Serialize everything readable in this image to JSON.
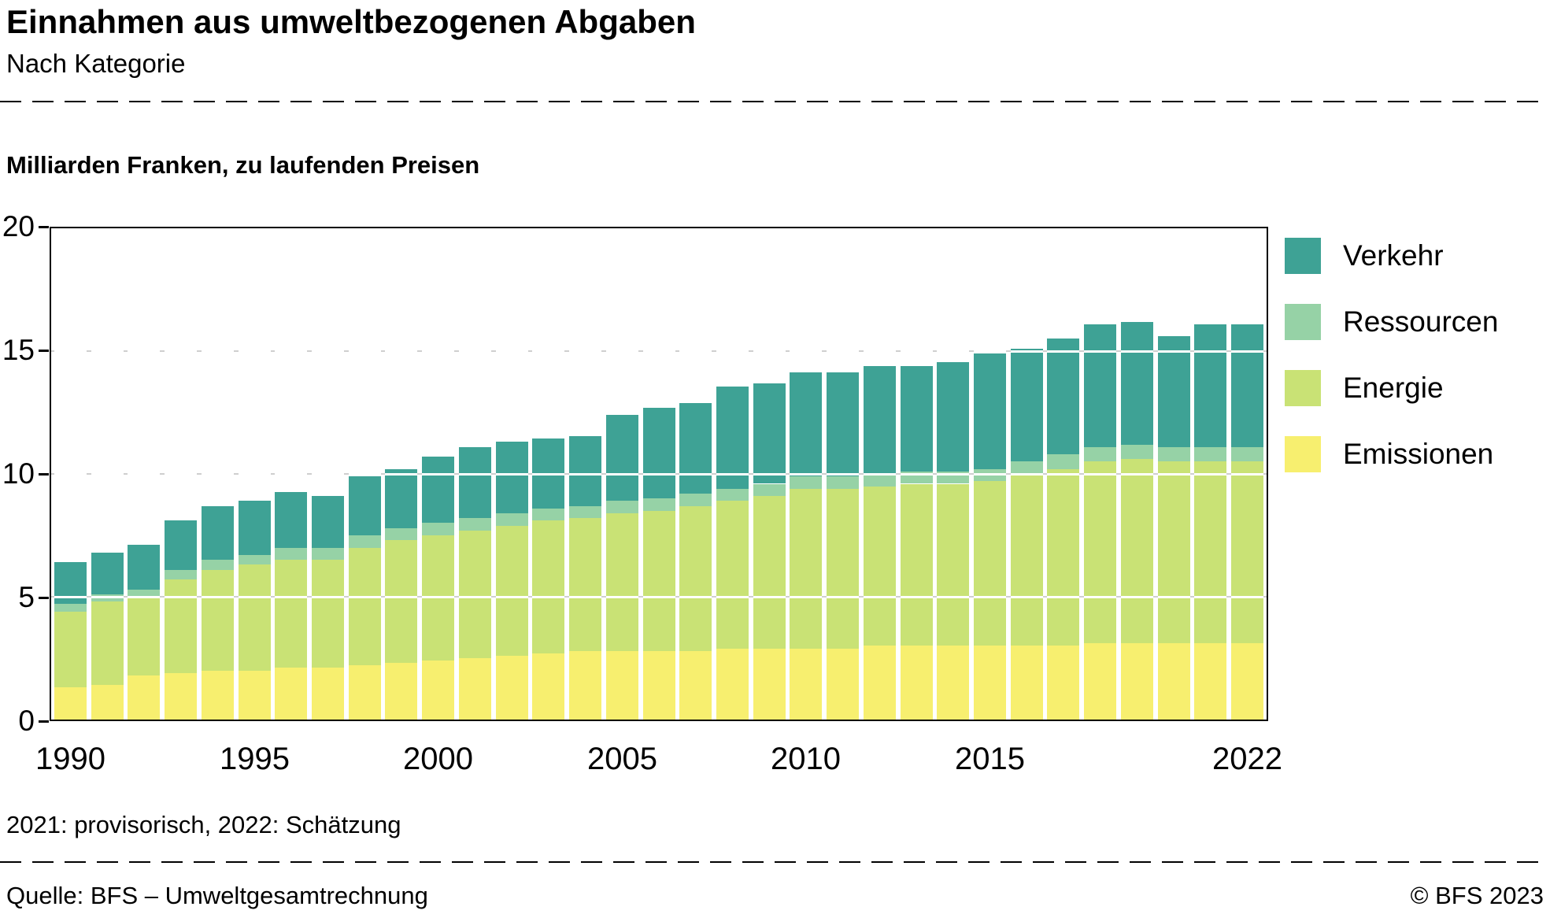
{
  "header": {
    "title": "Einnahmen aus umweltbezogenen Abgaben",
    "subtitle": "Nach Kategorie"
  },
  "chart": {
    "axis_title": "Milliarden Franken, zu laufenden Preisen",
    "footnote": "2021: provisorisch, 2022: Schätzung",
    "x_tick_labels": [
      "1990",
      "1995",
      "2000",
      "2005",
      "2010",
      "2015",
      "2022"
    ]
  },
  "chart_data": {
    "type": "bar",
    "stacked": true,
    "title": "Einnahmen aus umweltbezogenen Abgaben",
    "subtitle": "Nach Kategorie",
    "ylabel": "Milliarden Franken, zu laufenden Preisen",
    "ylim": [
      0,
      20
    ],
    "yticks": [
      0,
      5,
      10,
      15,
      20
    ],
    "grid_values": [
      5,
      10,
      15
    ],
    "legend_position": "right",
    "categories": [
      1990,
      1991,
      1992,
      1993,
      1994,
      1995,
      1996,
      1997,
      1998,
      1999,
      2000,
      2001,
      2002,
      2003,
      2004,
      2005,
      2006,
      2007,
      2008,
      2009,
      2010,
      2011,
      2012,
      2013,
      2014,
      2015,
      2016,
      2017,
      2018,
      2019,
      2020,
      2021,
      2022
    ],
    "series": [
      {
        "name": "Emissionen",
        "color": "#f7ef6f",
        "values": [
          1.3,
          1.4,
          1.8,
          1.9,
          2.0,
          2.0,
          2.1,
          2.1,
          2.2,
          2.3,
          2.4,
          2.5,
          2.6,
          2.7,
          2.8,
          2.8,
          2.8,
          2.8,
          2.9,
          2.9,
          2.9,
          2.9,
          3.0,
          3.0,
          3.0,
          3.0,
          3.0,
          3.0,
          3.1,
          3.1,
          3.1,
          3.1,
          3.1
        ]
      },
      {
        "name": "Energie",
        "color": "#c9e275",
        "values": [
          3.1,
          3.4,
          3.2,
          3.8,
          4.1,
          4.3,
          4.4,
          4.4,
          4.8,
          5.0,
          5.1,
          5.2,
          5.3,
          5.4,
          5.4,
          5.6,
          5.7,
          5.9,
          6.0,
          6.2,
          6.5,
          6.5,
          6.5,
          6.6,
          6.6,
          6.7,
          7.0,
          7.2,
          7.4,
          7.5,
          7.4,
          7.4,
          7.4
        ]
      },
      {
        "name": "Ressourcen",
        "color": "#96d2a6",
        "values": [
          0.3,
          0.3,
          0.3,
          0.4,
          0.4,
          0.4,
          0.5,
          0.5,
          0.5,
          0.5,
          0.5,
          0.5,
          0.5,
          0.5,
          0.5,
          0.5,
          0.5,
          0.5,
          0.5,
          0.5,
          0.5,
          0.5,
          0.5,
          0.5,
          0.5,
          0.5,
          0.5,
          0.6,
          0.6,
          0.6,
          0.6,
          0.6,
          0.6
        ]
      },
      {
        "name": "Verkehr",
        "color": "#3ea295",
        "values": [
          1.7,
          1.7,
          1.8,
          2.0,
          2.2,
          2.2,
          2.25,
          2.1,
          2.4,
          2.4,
          2.7,
          2.9,
          2.9,
          2.85,
          2.85,
          3.5,
          3.7,
          3.7,
          4.15,
          4.1,
          4.25,
          4.25,
          4.4,
          4.3,
          4.45,
          4.7,
          4.6,
          4.7,
          5.0,
          5.0,
          4.5,
          5.0,
          5.0
        ]
      }
    ],
    "legend": [
      {
        "label": "Verkehr",
        "color": "#3ea295"
      },
      {
        "label": "Ressourcen",
        "color": "#96d2a6"
      },
      {
        "label": "Energie",
        "color": "#c9e275"
      },
      {
        "label": "Emissionen",
        "color": "#f7ef6f"
      }
    ]
  },
  "footer": {
    "source": "Quelle: BFS – Umweltgesamtrechnung",
    "copyright": "© BFS 2023"
  }
}
